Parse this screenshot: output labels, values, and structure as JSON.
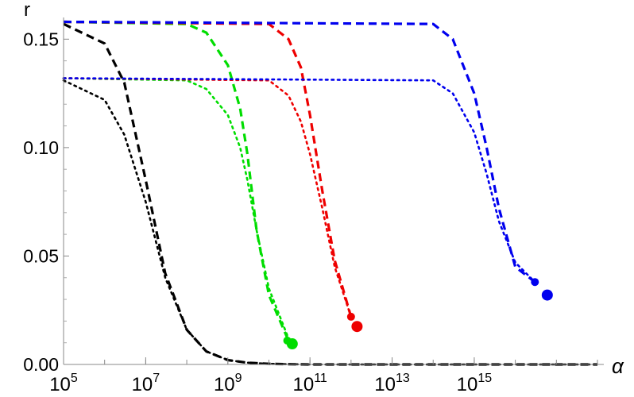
{
  "chart_data": {
    "type": "line",
    "title": "",
    "xlabel": "α",
    "ylabel": "r",
    "x_scale": "log",
    "xlim": [
      100000,
      1000000000000000000
    ],
    "ylim": [
      0,
      0.16
    ],
    "grid": false,
    "legend": "none",
    "x_ticks": [
      {
        "value": 100000,
        "base": "10",
        "exp": "5"
      },
      {
        "value": 10000000,
        "base": "10",
        "exp": "7"
      },
      {
        "value": 1000000000,
        "base": "10",
        "exp": "9"
      },
      {
        "value": 100000000000,
        "base": "10",
        "exp": "11"
      },
      {
        "value": 10000000000000,
        "base": "10",
        "exp": "13"
      },
      {
        "value": 1000000000000000,
        "base": "10",
        "exp": "15"
      }
    ],
    "y_ticks": [
      {
        "value": 0,
        "label": "0.00"
      },
      {
        "value": 0.05,
        "label": "0.05"
      },
      {
        "value": 0.1,
        "label": "0.10"
      },
      {
        "value": 0.15,
        "label": "0.15"
      }
    ],
    "series": [
      {
        "color": "#000000",
        "style": "dashed",
        "x": [
          100000,
          1000000,
          3000000,
          10000000,
          30000000,
          100000000,
          300000000,
          1000000000,
          3000000000,
          10000000000,
          30000000000,
          100000000000,
          1000000000000,
          1000000000000000000
        ],
        "y": [
          0.157,
          0.148,
          0.13,
          0.085,
          0.042,
          0.016,
          0.006,
          0.002,
          0.0008,
          0.0003,
          0.0001,
          0.0,
          0.0,
          0.0
        ]
      },
      {
        "color": "#000000",
        "style": "dotted",
        "x": [
          100000,
          1000000,
          3000000,
          10000000,
          30000000,
          100000000,
          300000000,
          1000000000,
          3000000000,
          10000000000,
          30000000000,
          100000000000,
          1000000000000,
          1000000000000000000
        ],
        "y": [
          0.131,
          0.122,
          0.106,
          0.075,
          0.04,
          0.016,
          0.006,
          0.002,
          0.0008,
          0.0003,
          0.0001,
          0.0,
          0.0,
          0.0
        ]
      },
      {
        "color": "#00dd00",
        "style": "dashed",
        "x": [
          100000,
          100000000,
          300000000,
          1000000000,
          2000000000,
          3000000000,
          5000000000,
          10000000000,
          30000000000
        ],
        "y": [
          0.158,
          0.157,
          0.153,
          0.138,
          0.118,
          0.097,
          0.062,
          0.032,
          0.011
        ],
        "endpoint": {
          "x": 37000000000,
          "y": 0.0095
        }
      },
      {
        "color": "#00dd00",
        "style": "dotted",
        "x": [
          100000,
          100000000,
          300000000,
          1000000000,
          2000000000,
          3000000000,
          5000000000,
          10000000000,
          30000000000
        ],
        "y": [
          0.132,
          0.131,
          0.127,
          0.115,
          0.1,
          0.085,
          0.062,
          0.035,
          0.012
        ],
        "endpoint": {
          "x": 28000000000,
          "y": 0.011
        }
      },
      {
        "color": "#ee0000",
        "style": "dashed",
        "x": [
          100000,
          10000000000,
          30000000000,
          60000000000,
          100000000000,
          200000000000,
          400000000000,
          1000000000000
        ],
        "y": [
          0.158,
          0.157,
          0.15,
          0.137,
          0.115,
          0.08,
          0.048,
          0.022
        ],
        "endpoint": {
          "x": 1400000000000,
          "y": 0.0175
        }
      },
      {
        "color": "#ee0000",
        "style": "dotted",
        "x": [
          100000,
          10000000000,
          30000000000,
          60000000000,
          100000000000,
          200000000000,
          400000000000,
          1000000000000
        ],
        "y": [
          0.132,
          0.131,
          0.124,
          0.112,
          0.097,
          0.072,
          0.045,
          0.022
        ],
        "endpoint": {
          "x": 1000000000000,
          "y": 0.022
        }
      },
      {
        "color": "#0000ee",
        "style": "dashed",
        "x": [
          100000,
          100000000000000,
          300000000000000,
          1000000000000000,
          2000000000000000,
          4000000000000000,
          10000000000000000,
          30000000000000000
        ],
        "y": [
          0.158,
          0.157,
          0.15,
          0.125,
          0.1,
          0.072,
          0.045,
          0.038
        ],
        "endpoint": {
          "x": 60000000000000000,
          "y": 0.032
        }
      },
      {
        "color": "#0000ee",
        "style": "dotted",
        "x": [
          100000,
          100000000000000,
          300000000000000,
          1000000000000000,
          2000000000000000,
          4000000000000000,
          10000000000000000,
          30000000000000000
        ],
        "y": [
          0.132,
          0.131,
          0.125,
          0.107,
          0.088,
          0.066,
          0.047,
          0.038
        ],
        "endpoint": {
          "x": 30000000000000000,
          "y": 0.038
        }
      }
    ]
  }
}
